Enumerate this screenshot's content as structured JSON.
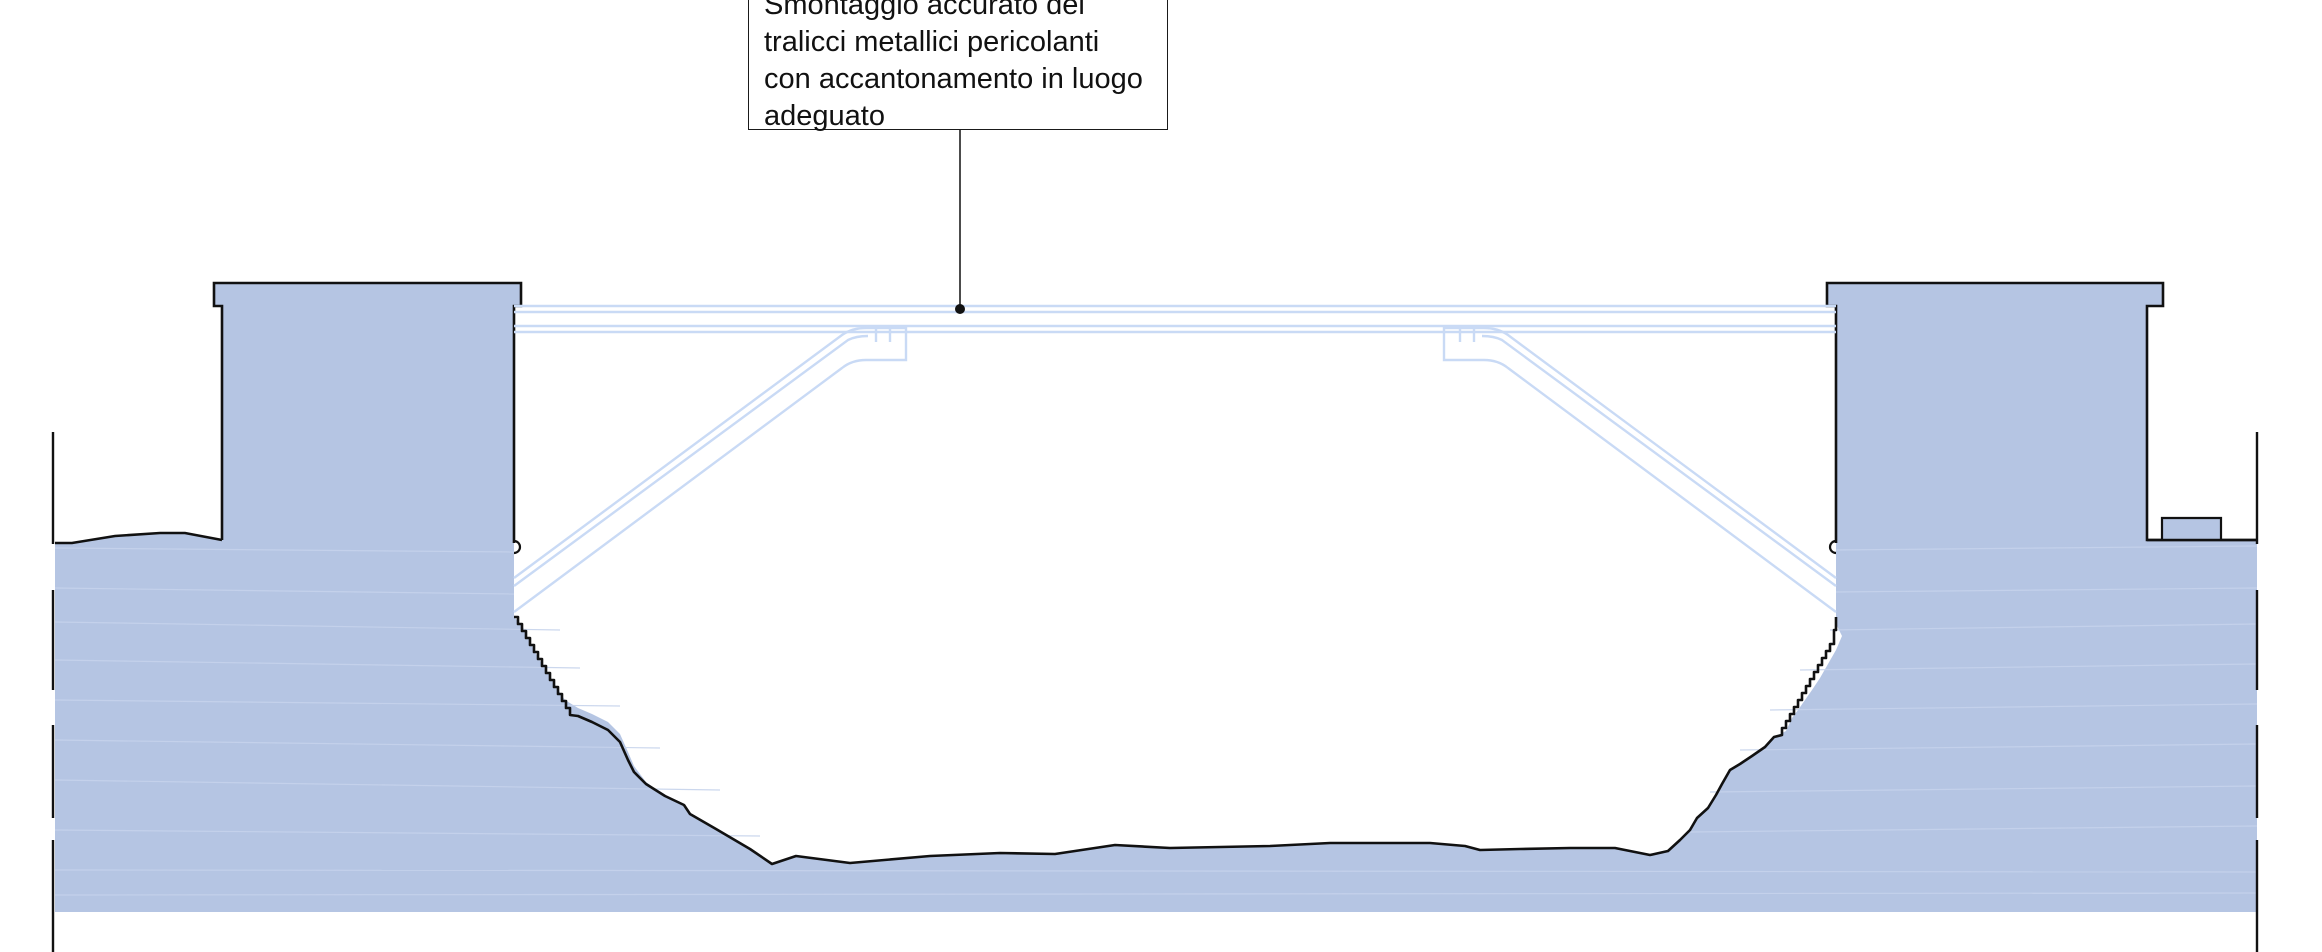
{
  "annotation": {
    "lines": [
      "Smontaggio accurato dei",
      "tralicci metallici pericolanti",
      "con accantonamento in luogo",
      "adeguato"
    ]
  },
  "colors": {
    "masonry_fill": "#b5c5e3",
    "outline": "#111111",
    "truss": "#c9daf5",
    "background": "#ffffff"
  }
}
